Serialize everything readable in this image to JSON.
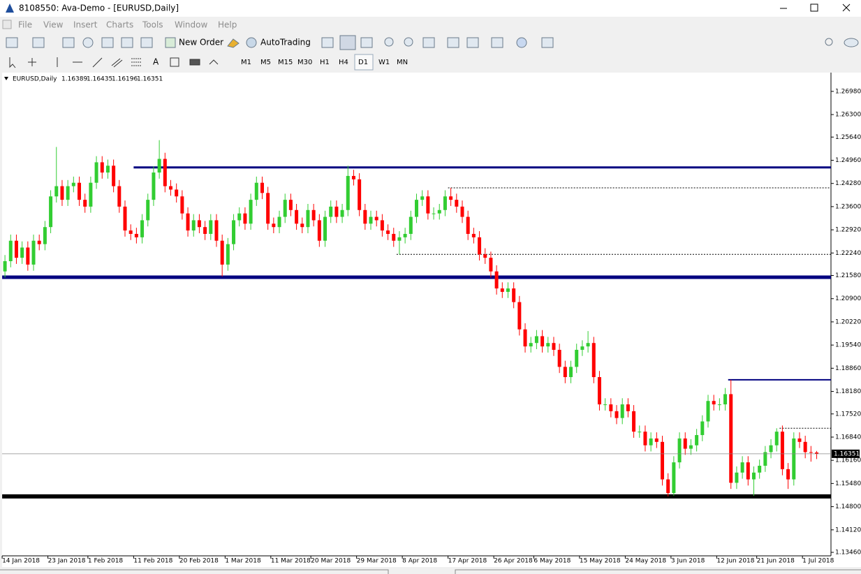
{
  "window_title": "8108550: Ava-Demo - [EURUSD,Daily]",
  "menu": [
    "File",
    "View",
    "Insert",
    "Charts",
    "Tools",
    "Window",
    "Help"
  ],
  "toolbar": {
    "new_order": "New Order",
    "auto_trading": "AutoTrading",
    "timeframes": [
      "M1",
      "M5",
      "M15",
      "M30",
      "H1",
      "H4",
      "D1",
      "W1",
      "MN"
    ]
  },
  "chart_data": {
    "type": "candlestick",
    "title": "EURUSD,Daily",
    "open": [
      1.217,
      1.22,
      1.226,
      1.221,
      1.224,
      1.219,
      1.226,
      1.225,
      1.23,
      1.239,
      1.242,
      1.238,
      1.242,
      1.243,
      1.238,
      1.236,
      1.243,
      1.249,
      1.246,
      1.248,
      1.242,
      1.236,
      1.229,
      1.228,
      1.227,
      1.232,
      1.238,
      1.246,
      1.25,
      1.242,
      1.241,
      1.239,
      1.234,
      1.229,
      1.232,
      1.23,
      1.228,
      1.232,
      1.226,
      1.219,
      1.225,
      1.232,
      1.234,
      1.231,
      1.238,
      1.243,
      1.24,
      1.231,
      1.23,
      1.233,
      1.238,
      1.235,
      1.231,
      1.23,
      1.235,
      1.232,
      1.226,
      1.233,
      1.236,
      1.233,
      1.235,
      1.245,
      1.244,
      1.235,
      1.231,
      1.233,
      1.232,
      1.229,
      1.228,
      1.226,
      1.227,
      1.228,
      1.233,
      1.238,
      1.239,
      1.234,
      1.234,
      1.235,
      1.239,
      1.238,
      1.236,
      1.233,
      1.228,
      1.227,
      1.222,
      1.221,
      1.217,
      1.212,
      1.211,
      1.212,
      1.208,
      1.2,
      1.195,
      1.196,
      1.198,
      1.195,
      1.196,
      1.194,
      1.189,
      1.186,
      1.189,
      1.194,
      1.195,
      1.196,
      1.186,
      1.178,
      1.178,
      1.176,
      1.174,
      1.178,
      1.176,
      1.17,
      1.17,
      1.166,
      1.168,
      1.167,
      1.156,
      1.152,
      1.161,
      1.168,
      1.165,
      1.166,
      1.169,
      1.173,
      1.179,
      1.178,
      1.178,
      1.181,
      1.155,
      1.158,
      1.161,
      1.156,
      1.158,
      1.16,
      1.164,
      1.166,
      1.17,
      1.159,
      1.156,
      1.168,
      1.167,
      1.164,
      1.16389
    ],
    "high": [
      1.2218,
      1.2278,
      1.2278,
      1.2258,
      1.2258,
      1.2278,
      1.2278,
      1.2318,
      1.2408,
      1.2535,
      1.2438,
      1.2438,
      1.2448,
      1.2448,
      1.2398,
      1.2448,
      1.2508,
      1.2508,
      1.2498,
      1.2498,
      1.2438,
      1.2378,
      1.2308,
      1.2298,
      1.2338,
      1.2398,
      1.2478,
      1.2555,
      1.2518,
      1.2438,
      1.2428,
      1.2408,
      1.2358,
      1.2338,
      1.2338,
      1.2318,
      1.2338,
      1.2338,
      1.2278,
      1.2268,
      1.2338,
      1.2358,
      1.2358,
      1.2398,
      1.2448,
      1.2448,
      1.2418,
      1.2328,
      1.2348,
      1.2398,
      1.2398,
      1.2368,
      1.2328,
      1.2368,
      1.2368,
      1.2338,
      1.2348,
      1.2378,
      1.2378,
      1.2368,
      1.248,
      1.2468,
      1.2458,
      1.2368,
      1.2348,
      1.2348,
      1.2338,
      1.2308,
      1.2298,
      1.2288,
      1.2298,
      1.2348,
      1.2398,
      1.2408,
      1.2408,
      1.2358,
      1.2368,
      1.2408,
      1.2415,
      1.2398,
      1.2378,
      1.2348,
      1.2298,
      1.2288,
      1.2238,
      1.2228,
      1.2188,
      1.2138,
      1.2138,
      1.2138,
      1.2098,
      1.2018,
      1.1978,
      1.1998,
      1.1998,
      1.1978,
      1.1978,
      1.1958,
      1.1908,
      1.1908,
      1.1958,
      1.1968,
      1.1995,
      1.1978,
      1.1878,
      1.1798,
      1.1798,
      1.1778,
      1.1798,
      1.1798,
      1.1778,
      1.1718,
      1.1718,
      1.1698,
      1.1698,
      1.1688,
      1.1578,
      1.1628,
      1.1698,
      1.1698,
      1.1678,
      1.1708,
      1.1748,
      1.1808,
      1.1808,
      1.1798,
      1.1828,
      1.1852,
      1.1598,
      1.1628,
      1.1628,
      1.1598,
      1.1618,
      1.1658,
      1.1678,
      1.171,
      1.1718,
      1.1608,
      1.1698,
      1.1698,
      1.1688,
      1.1658,
      1.16435
    ],
    "low": [
      1.2152,
      1.2182,
      1.2192,
      1.2192,
      1.2172,
      1.2172,
      1.2232,
      1.2232,
      1.2282,
      1.2372,
      1.2362,
      1.2362,
      1.2402,
      1.2362,
      1.2342,
      1.2342,
      1.2412,
      1.2442,
      1.2442,
      1.2402,
      1.2342,
      1.2272,
      1.2262,
      1.2252,
      1.2252,
      1.2302,
      1.2362,
      1.2442,
      1.2402,
      1.2392,
      1.2372,
      1.2322,
      1.2272,
      1.2272,
      1.2282,
      1.2262,
      1.2262,
      1.2242,
      1.2155,
      1.2172,
      1.2232,
      1.2302,
      1.2292,
      1.2292,
      1.2362,
      1.2382,
      1.2292,
      1.2282,
      1.2282,
      1.2312,
      1.2332,
      1.2292,
      1.2282,
      1.2282,
      1.2302,
      1.2242,
      1.2242,
      1.2312,
      1.2312,
      1.2312,
      1.2332,
      1.2422,
      1.2332,
      1.2292,
      1.2292,
      1.2302,
      1.2272,
      1.2262,
      1.2242,
      1.222,
      1.2252,
      1.2262,
      1.2312,
      1.2362,
      1.2322,
      1.2322,
      1.2322,
      1.2332,
      1.2362,
      1.2342,
      1.2312,
      1.2262,
      1.2252,
      1.2202,
      1.2192,
      1.2152,
      1.2102,
      1.2092,
      1.2092,
      1.2062,
      1.1982,
      1.1932,
      1.1932,
      1.1942,
      1.1932,
      1.1932,
      1.1922,
      1.1872,
      1.1842,
      1.1842,
      1.1872,
      1.1922,
      1.1932,
      1.1842,
      1.1762,
      1.1762,
      1.1742,
      1.1722,
      1.1722,
      1.1742,
      1.1682,
      1.1682,
      1.1642,
      1.1642,
      1.1652,
      1.1542,
      1.151,
      1.1512,
      1.1592,
      1.1632,
      1.1632,
      1.1642,
      1.1672,
      1.1712,
      1.1762,
      1.1762,
      1.1762,
      1.1532,
      1.1532,
      1.1562,
      1.1542,
      1.1512,
      1.1562,
      1.1582,
      1.1622,
      1.1642,
      1.1572,
      1.1532,
      1.1542,
      1.1652,
      1.1622,
      1.1612,
      1.16196
    ],
    "close": [
      1.22,
      1.226,
      1.221,
      1.224,
      1.219,
      1.226,
      1.225,
      1.23,
      1.239,
      1.242,
      1.238,
      1.242,
      1.243,
      1.238,
      1.236,
      1.243,
      1.249,
      1.246,
      1.248,
      1.242,
      1.236,
      1.229,
      1.228,
      1.227,
      1.232,
      1.238,
      1.246,
      1.25,
      1.242,
      1.241,
      1.239,
      1.234,
      1.229,
      1.232,
      1.23,
      1.228,
      1.232,
      1.226,
      1.219,
      1.225,
      1.232,
      1.234,
      1.231,
      1.238,
      1.243,
      1.24,
      1.231,
      1.23,
      1.233,
      1.238,
      1.235,
      1.231,
      1.23,
      1.235,
      1.232,
      1.226,
      1.233,
      1.236,
      1.233,
      1.235,
      1.245,
      1.244,
      1.235,
      1.231,
      1.233,
      1.232,
      1.229,
      1.228,
      1.226,
      1.227,
      1.228,
      1.233,
      1.238,
      1.239,
      1.234,
      1.234,
      1.235,
      1.239,
      1.238,
      1.236,
      1.233,
      1.228,
      1.227,
      1.222,
      1.221,
      1.217,
      1.212,
      1.211,
      1.212,
      1.208,
      1.2,
      1.195,
      1.196,
      1.198,
      1.195,
      1.196,
      1.194,
      1.189,
      1.186,
      1.189,
      1.194,
      1.195,
      1.196,
      1.186,
      1.178,
      1.178,
      1.176,
      1.174,
      1.178,
      1.176,
      1.17,
      1.17,
      1.166,
      1.168,
      1.167,
      1.156,
      1.152,
      1.161,
      1.168,
      1.165,
      1.166,
      1.169,
      1.173,
      1.179,
      1.178,
      1.178,
      1.181,
      1.155,
      1.158,
      1.161,
      1.156,
      1.158,
      1.16,
      1.164,
      1.166,
      1.17,
      1.159,
      1.156,
      1.168,
      1.167,
      1.164,
      1.1639,
      1.16351
    ],
    "up_color": "#32CD32",
    "down_color": "#FF0000",
    "xlim": [
      -0.5,
      144.5
    ],
    "xticks": [
      {
        "value": 0,
        "label": "14 Jan 2018"
      },
      {
        "value": 8,
        "label": "23 Jan 2018"
      },
      {
        "value": 15,
        "label": "1 Feb 2018"
      },
      {
        "value": 23,
        "label": "11 Feb 2018"
      },
      {
        "value": 31,
        "label": "20 Feb 2018"
      },
      {
        "value": 39,
        "label": "1 Mar 2018"
      },
      {
        "value": 47,
        "label": "11 Mar 2018"
      },
      {
        "value": 54,
        "label": "20 Mar 2018"
      },
      {
        "value": 62,
        "label": "29 Mar 2018"
      },
      {
        "value": 70,
        "label": "8 Apr 2018"
      },
      {
        "value": 78,
        "label": "17 Apr 2018"
      },
      {
        "value": 86,
        "label": "26 Apr 2018"
      },
      {
        "value": 93,
        "label": "6 May 2018"
      },
      {
        "value": 101,
        "label": "15 May 2018"
      },
      {
        "value": 109,
        "label": "24 May 2018"
      },
      {
        "value": 117,
        "label": "3 Jun 2018"
      },
      {
        "value": 125,
        "label": "12 Jun 2018"
      },
      {
        "value": 132,
        "label": "21 Jun 2018"
      },
      {
        "value": 140,
        "label": "1 Jul 2018"
      }
    ],
    "ylim": [
      1.1303,
      1.2753
    ],
    "yticks": [
      {
        "value": 1.2698,
        "label": "1.26980"
      },
      {
        "value": 1.263,
        "label": "1.26300"
      },
      {
        "value": 1.2564,
        "label": "1.25640"
      },
      {
        "value": 1.2496,
        "label": "1.24960"
      },
      {
        "value": 1.2428,
        "label": "1.24280"
      },
      {
        "value": 1.236,
        "label": "1.23600"
      },
      {
        "value": 1.2292,
        "label": "1.22920"
      },
      {
        "value": 1.2224,
        "label": "1.22240"
      },
      {
        "value": 1.2158,
        "label": "1.21580"
      },
      {
        "value": 1.209,
        "label": "1.20900"
      },
      {
        "value": 1.2022,
        "label": "1.20220"
      },
      {
        "value": 1.1954,
        "label": "1.19540"
      },
      {
        "value": 1.1886,
        "label": "1.18860"
      },
      {
        "value": 1.1818,
        "label": "1.18180"
      },
      {
        "value": 1.1752,
        "label": "1.17520"
      },
      {
        "value": 1.1684,
        "label": "1.16840"
      },
      {
        "value": 1.1616,
        "label": "1.16160"
      },
      {
        "value": 1.1548,
        "label": "1.15480"
      },
      {
        "value": 1.148,
        "label": "1.14800"
      },
      {
        "value": 1.1412,
        "label": "1.14120"
      },
      {
        "value": 1.1346,
        "label": "1.13460"
      }
    ],
    "levels": [
      {
        "value": 1.2475,
        "start": 23,
        "color": "#000080",
        "width": 3,
        "style": "solid"
      },
      {
        "value": 1.2153,
        "start": 0,
        "color": "#000080",
        "width": 5,
        "style": "solid"
      },
      {
        "value": 1.151,
        "start": 0,
        "color": "#000000",
        "width": 6,
        "style": "solid"
      },
      {
        "value": 1.1852,
        "start": 127,
        "color": "#000080",
        "width": 2,
        "style": "solid"
      },
      {
        "value": 1.2415,
        "start": 78,
        "color": "#000000",
        "width": 1,
        "style": "dotted"
      },
      {
        "value": 1.222,
        "start": 69,
        "color": "#000000",
        "width": 1,
        "style": "dotted"
      },
      {
        "value": 1.171,
        "start": 136,
        "color": "#000000",
        "width": 1,
        "style": "dotted"
      }
    ]
  }
}
